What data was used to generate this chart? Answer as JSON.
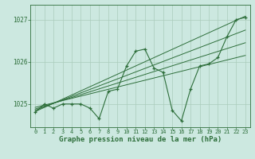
{
  "title": "Graphe pression niveau de la mer (hPa)",
  "bg_color": "#cce8e0",
  "grid_color": "#aaccbb",
  "line_color": "#2d6e3a",
  "ylim": [
    1024.45,
    1027.35
  ],
  "xlim": [
    -0.5,
    23.5
  ],
  "yticks": [
    1025,
    1026,
    1027
  ],
  "xticks": [
    0,
    1,
    2,
    3,
    4,
    5,
    6,
    7,
    8,
    9,
    10,
    11,
    12,
    13,
    14,
    15,
    16,
    17,
    18,
    19,
    20,
    21,
    22,
    23
  ],
  "data_x": [
    0,
    1,
    2,
    3,
    4,
    5,
    6,
    7,
    8,
    9,
    10,
    11,
    12,
    13,
    14,
    15,
    16,
    17,
    18,
    19,
    20,
    21,
    22,
    23
  ],
  "data_y": [
    1024.8,
    1025.0,
    1024.9,
    1025.0,
    1025.0,
    1025.0,
    1024.9,
    1024.65,
    1025.3,
    1025.35,
    1025.9,
    1026.25,
    1026.3,
    1025.85,
    1025.75,
    1024.85,
    1024.6,
    1025.35,
    1025.9,
    1025.95,
    1026.1,
    1026.6,
    1027.0,
    1027.05
  ],
  "trend1_x": [
    0,
    23
  ],
  "trend1_y": [
    1024.82,
    1027.08
  ],
  "trend2_x": [
    0,
    23
  ],
  "trend2_y": [
    1024.85,
    1026.75
  ],
  "trend3_x": [
    0,
    23
  ],
  "trend3_y": [
    1024.88,
    1026.45
  ],
  "trend4_x": [
    0,
    23
  ],
  "trend4_y": [
    1024.92,
    1026.15
  ],
  "title_fontsize": 6.5
}
